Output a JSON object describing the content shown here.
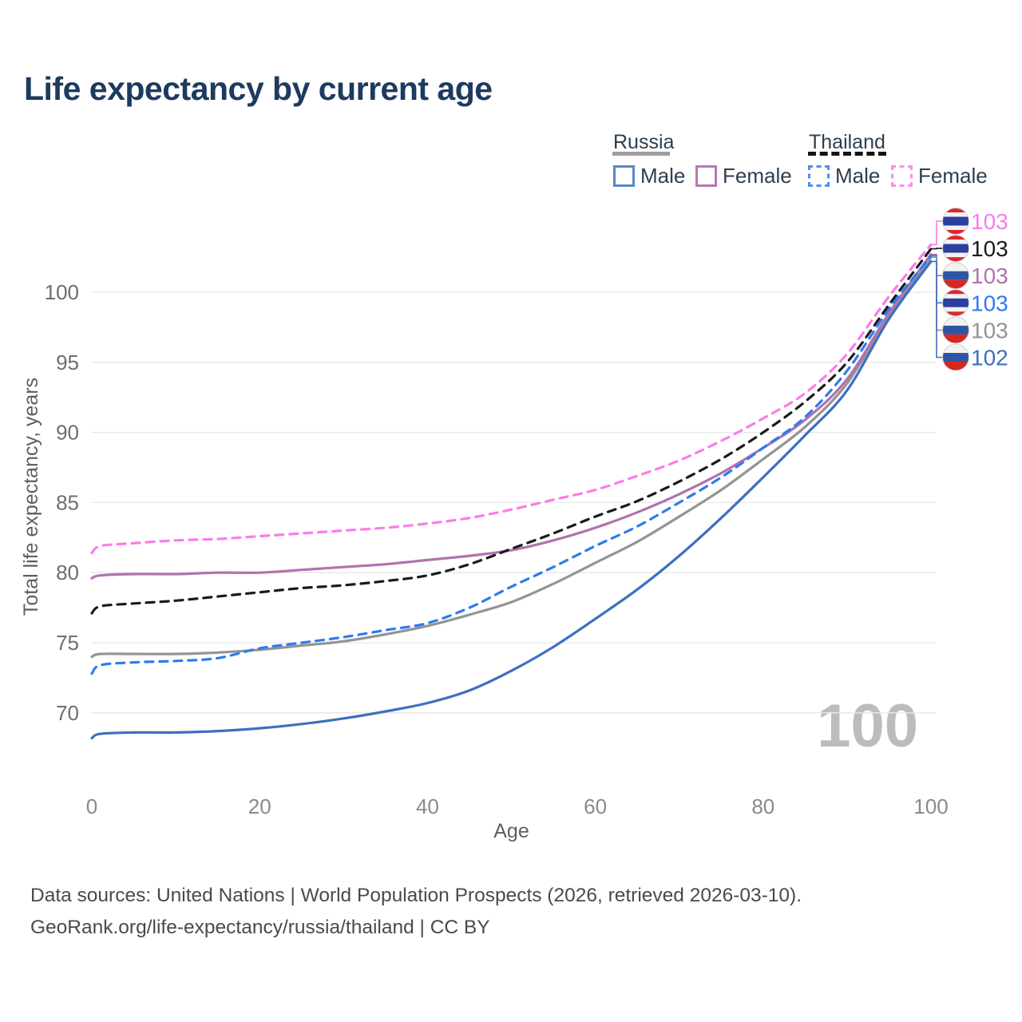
{
  "title": "Life expectancy by current age",
  "legend": {
    "groups": [
      {
        "label": "Russia",
        "dash": "solid",
        "underline_color": "#9e9e9e"
      },
      {
        "label": "Thailand",
        "dash": "dashed",
        "underline_color": "#141414"
      }
    ],
    "items": [
      {
        "label": "Male",
        "color": "#5b86c8",
        "dash": "solid"
      },
      {
        "label": "Female",
        "color": "#b679b4",
        "dash": "solid"
      },
      {
        "label": "Male",
        "color": "#4f8df5",
        "dash": "dashed"
      },
      {
        "label": "Female",
        "color": "#fc8df0",
        "dash": "dashed"
      }
    ]
  },
  "chart_data": {
    "type": "line",
    "title": "Life expectancy by current age",
    "xlabel": "Age",
    "ylabel": "Total life expectancy, years",
    "x_ticks": [
      0,
      20,
      40,
      60,
      80,
      100
    ],
    "y_ticks": [
      70,
      75,
      80,
      85,
      90,
      95,
      100
    ],
    "xlim": [
      0,
      100
    ],
    "ylim": [
      66.5,
      104.5
    ],
    "grid": "horizontal-only",
    "legend_position": "top-right",
    "age_counter_watermark": "100",
    "x": [
      0,
      1,
      5,
      10,
      15,
      20,
      25,
      30,
      35,
      40,
      45,
      50,
      55,
      60,
      65,
      70,
      75,
      80,
      85,
      90,
      95,
      100
    ],
    "series": [
      {
        "id": "russia_total",
        "name": "Russia (both sexes)",
        "country": "Russia",
        "sex": "Both",
        "color": "#949494",
        "dash": "solid",
        "end_label": "103",
        "flag": "russia",
        "values": [
          74.0,
          74.2,
          74.2,
          74.2,
          74.3,
          74.5,
          74.8,
          75.1,
          75.6,
          76.2,
          77.0,
          77.9,
          79.2,
          80.7,
          82.2,
          84.0,
          85.9,
          88.1,
          90.4,
          93.5,
          98.3,
          102.5
        ]
      },
      {
        "id": "russia_male",
        "name": "Russia Male",
        "country": "Russia",
        "sex": "Male",
        "color": "#3e6fbf",
        "dash": "solid",
        "end_label": "102",
        "flag": "russia",
        "values": [
          68.2,
          68.5,
          68.6,
          68.6,
          68.7,
          68.9,
          69.2,
          69.6,
          70.1,
          70.7,
          71.6,
          73.0,
          74.7,
          76.7,
          78.8,
          81.2,
          83.9,
          86.8,
          89.8,
          93.0,
          98.1,
          102.2
        ]
      },
      {
        "id": "russia_female",
        "name": "Russia Female",
        "country": "Russia",
        "sex": "Female",
        "color": "#b073ae",
        "dash": "solid",
        "end_label": "103",
        "flag": "russia",
        "values": [
          79.6,
          79.8,
          79.9,
          79.9,
          80.0,
          80.0,
          80.2,
          80.4,
          80.6,
          80.9,
          81.2,
          81.6,
          82.3,
          83.2,
          84.3,
          85.6,
          87.1,
          88.9,
          90.9,
          93.8,
          98.5,
          102.7
        ]
      },
      {
        "id": "thailand_male",
        "name": "Thailand Male",
        "country": "Thailand",
        "sex": "Male",
        "color": "#2e7bf0",
        "dash": "dashed",
        "end_label": "103",
        "flag": "thailand",
        "values": [
          72.8,
          73.4,
          73.6,
          73.7,
          73.9,
          74.6,
          75.0,
          75.4,
          75.9,
          76.4,
          77.5,
          79.0,
          80.4,
          81.9,
          83.3,
          85.0,
          86.8,
          88.9,
          91.1,
          94.4,
          98.8,
          102.6
        ]
      },
      {
        "id": "thailand_total",
        "name": "Thailand (both sexes)",
        "country": "Thailand",
        "sex": "Both",
        "color": "#1a1a1a",
        "dash": "dashed",
        "end_label": "103",
        "flag": "thailand",
        "values": [
          77.1,
          77.6,
          77.8,
          78.0,
          78.3,
          78.6,
          78.9,
          79.1,
          79.4,
          79.8,
          80.6,
          81.7,
          82.8,
          84.0,
          85.1,
          86.5,
          88.1,
          90.0,
          92.2,
          95.0,
          99.1,
          103.1
        ]
      },
      {
        "id": "thailand_female",
        "name": "Thailand Female",
        "country": "Thailand",
        "sex": "Female",
        "color": "#fb7ce8",
        "dash": "dashed",
        "end_label": "103",
        "flag": "thailand",
        "values": [
          81.4,
          81.9,
          82.1,
          82.3,
          82.4,
          82.6,
          82.8,
          83.0,
          83.2,
          83.5,
          83.9,
          84.5,
          85.2,
          85.9,
          86.9,
          88.0,
          89.4,
          91.0,
          92.8,
          95.6,
          99.7,
          103.4
        ]
      }
    ],
    "end_label_order": [
      "thailand_female",
      "thailand_total",
      "russia_female",
      "thailand_male",
      "russia_total",
      "russia_male"
    ]
  },
  "flags": {
    "russia": {
      "stripes": [
        [
          "#f2f2f2",
          0.3333
        ],
        [
          "#2d55a5",
          0.3333
        ],
        [
          "#d7281e",
          0.3334
        ]
      ]
    },
    "thailand": {
      "stripes": [
        [
          "#e0252e",
          0.1667
        ],
        [
          "#f2f2f2",
          0.1666
        ],
        [
          "#2b3f9e",
          0.3334
        ],
        [
          "#f2f2f2",
          0.1666
        ],
        [
          "#e0252e",
          0.1667
        ]
      ]
    }
  },
  "footer": {
    "line1": "Data sources: United Nations | World Population Prospects (2026, retrieved 2026-03-10).",
    "line2": "GeoRank.org/life-expectancy/russia/thailand | CC BY"
  }
}
